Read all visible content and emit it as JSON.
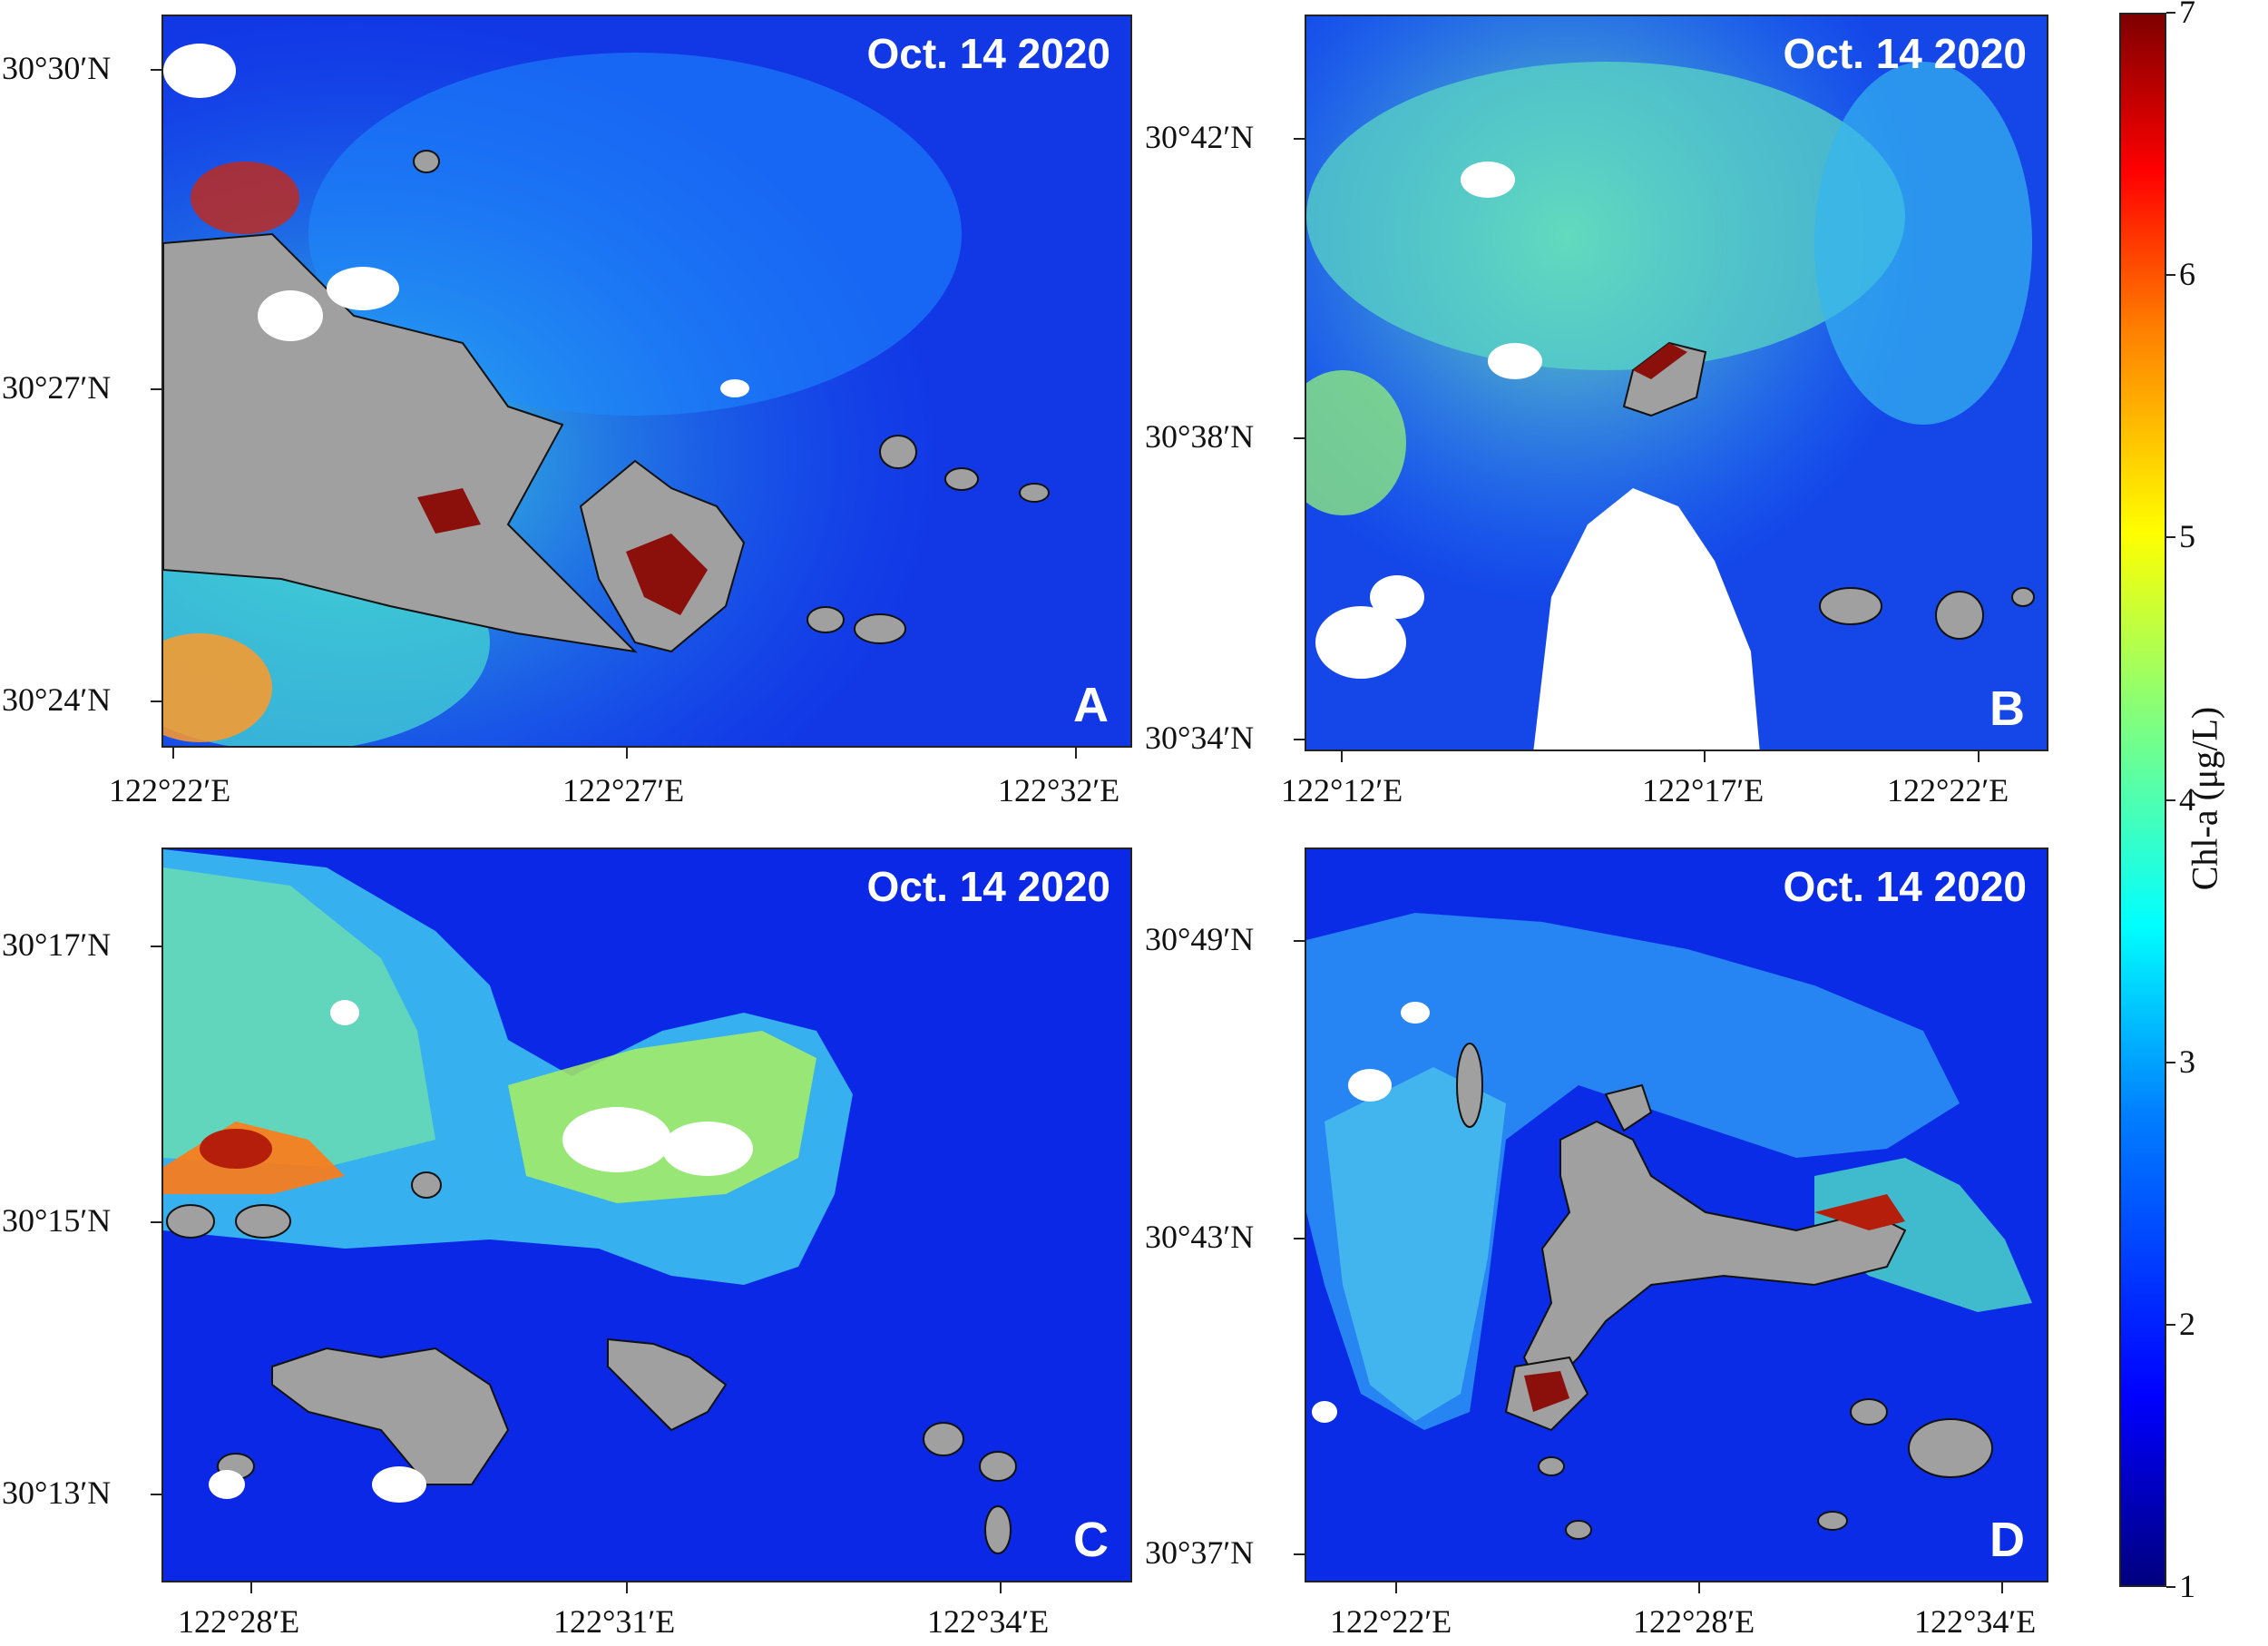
{
  "date_label": "Oct. 14 2020",
  "colors": {
    "deep_water": "#0a1ee6",
    "mid_water": "#1e8cff",
    "turbid_water": "#46dcd2",
    "high_chl": "#b41e0a",
    "land": "#a0a0a0",
    "cloud": "#ffffff"
  },
  "panels": [
    {
      "letter": "A",
      "y_ticks": [
        "30°30′N",
        "30°27′N",
        "30°24′N"
      ],
      "x_ticks": [
        "122°22′E",
        "122°27′E",
        "122°32′E"
      ]
    },
    {
      "letter": "B",
      "y_ticks": [
        "30°42′N",
        "30°38′N",
        "30°34′N"
      ],
      "x_ticks": [
        "122°12′E",
        "122°17′E",
        "122°22′E"
      ]
    },
    {
      "letter": "C",
      "y_ticks": [
        "30°17′N",
        "30°15′N",
        "30°13′N"
      ],
      "x_ticks": [
        "122°28′E",
        "122°31′E",
        "122°34′E"
      ]
    },
    {
      "letter": "D",
      "y_ticks": [
        "30°49′N",
        "30°43′N",
        "30°37′N"
      ],
      "x_ticks": [
        "122°22′E",
        "122°28′E",
        "122°34′E"
      ]
    }
  ],
  "colorbar": {
    "title": "Chl-a (μg/L)",
    "ticks": [
      "1",
      "2",
      "3",
      "4",
      "5",
      "6",
      "7"
    ],
    "min": 1,
    "max": 7
  }
}
